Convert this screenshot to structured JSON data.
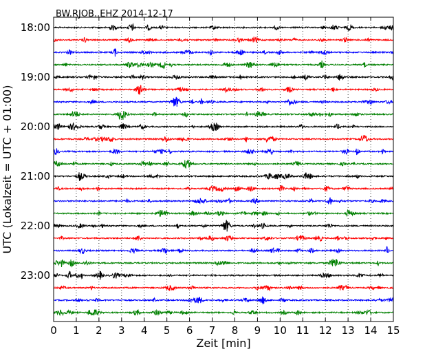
{
  "chart_data": {
    "type": "line",
    "title": "BW.RJOB..EHZ 2014-12-17",
    "xlabel": "Zeit  [min]",
    "ylabel": "UTC (Lokalzeit = UTC + 01:00)",
    "xlim": [
      0,
      15
    ],
    "x_ticks": [
      "0",
      "1",
      "2",
      "3",
      "4",
      "5",
      "6",
      "7",
      "8",
      "9",
      "10",
      "11",
      "12",
      "13",
      "14",
      "15"
    ],
    "y_tick_labels": [
      "18:00",
      "19:00",
      "20:00",
      "21:00",
      "22:00",
      "23:00"
    ],
    "rows_per_hour": 4,
    "row_minutes": 15,
    "start_time": "18:00",
    "trace_count": 24,
    "trace_colors": [
      "#000000",
      "#ff0000",
      "#0000ff",
      "#008000"
    ],
    "grid": "vertical dotted lines at each minute",
    "legend": "none"
  }
}
